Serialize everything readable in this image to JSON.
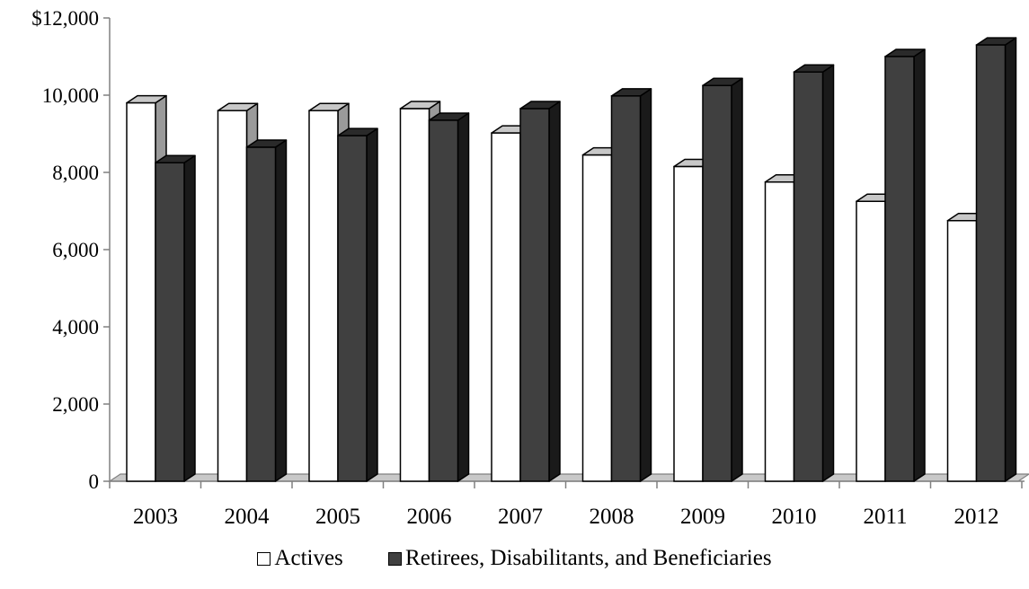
{
  "chart_data": {
    "type": "bar",
    "categories": [
      "2003",
      "2004",
      "2005",
      "2006",
      "2007",
      "2008",
      "2009",
      "2010",
      "2011",
      "2012"
    ],
    "series": [
      {
        "name": "Actives",
        "color": "#ffffff",
        "values": [
          9800,
          9600,
          9600,
          9650,
          9020,
          8450,
          8150,
          7750,
          7250,
          6750
        ]
      },
      {
        "name": "Retirees, Disabilitants, and Beneficiaries",
        "color": "#404040",
        "values": [
          8250,
          8650,
          8950,
          9350,
          9650,
          9980,
          10250,
          10600,
          11000,
          11300
        ]
      }
    ],
    "y_ticks": [
      "$12,000",
      "10,000",
      "8,000",
      "6,000",
      "4,000",
      "2,000",
      "0"
    ],
    "ylim": [
      0,
      12000
    ],
    "grid": false,
    "legend_position": "bottom",
    "style": "3d-clustered-column"
  }
}
